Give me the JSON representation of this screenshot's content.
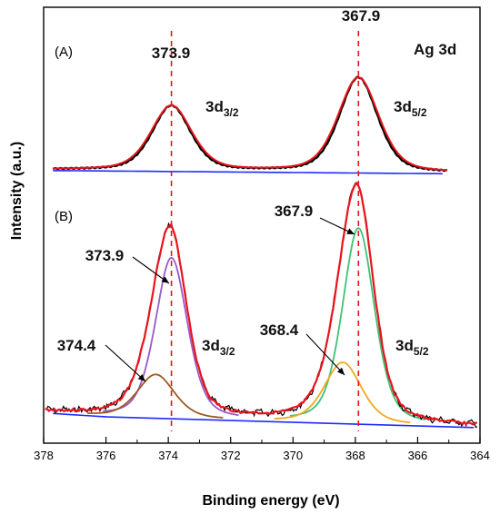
{
  "chart_data": {
    "type": "line",
    "title": "Ag 3d",
    "xlabel": "Binding energy (eV)",
    "ylabel": "Intensity (a.u.)",
    "xlim": [
      378,
      364
    ],
    "x_reversed": true,
    "xticks": [
      "378",
      "376",
      "374",
      "372",
      "370",
      "368",
      "366",
      "364"
    ],
    "grid": false,
    "panels": [
      {
        "label": "(A)",
        "peaks": [
          {
            "position": 373.9,
            "label": "373.9",
            "orbital": "3d",
            "orbital_sub": "3/2"
          },
          {
            "position": 367.9,
            "label": "367.9",
            "orbital": "3d",
            "orbital_sub": "5/2"
          }
        ],
        "series": [
          {
            "role": "experimental",
            "color": "#000000",
            "peaks": [
              {
                "center": 373.9,
                "height": 1.0,
                "width": 0.62
              },
              {
                "center": 367.9,
                "height": 1.46,
                "width": 0.62
              }
            ]
          },
          {
            "role": "fit-envelope",
            "color": "#e8141c",
            "peaks": [
              {
                "center": 373.9,
                "height": 1.0,
                "width": 0.66
              },
              {
                "center": 367.9,
                "height": 1.46,
                "width": 0.66
              }
            ]
          },
          {
            "role": "background",
            "color": "#1f2bff"
          }
        ]
      },
      {
        "label": "(B)",
        "peaks": [
          {
            "position": 373.9,
            "label": "373.9",
            "orbital": "3d",
            "orbital_sub": "3/2"
          },
          {
            "position": 374.4,
            "label": "374.4"
          },
          {
            "position": 367.9,
            "label": "367.9",
            "orbital": "3d",
            "orbital_sub": "5/2"
          },
          {
            "position": 368.4,
            "label": "368.4"
          }
        ],
        "series": [
          {
            "role": "component",
            "label": "373.9",
            "color": "#9a59c9",
            "center": 373.9,
            "height": 0.82,
            "width": 0.52
          },
          {
            "role": "component",
            "label": "374.4",
            "color": "#9c5a22",
            "center": 374.4,
            "height": 0.22,
            "width": 0.6
          },
          {
            "role": "component",
            "label": "367.9",
            "color": "#3ec276",
            "center": 367.9,
            "height": 1.0,
            "width": 0.52
          },
          {
            "role": "component",
            "label": "368.4",
            "color": "#f0a820",
            "center": 368.4,
            "height": 0.31,
            "width": 0.6
          },
          {
            "role": "fit-envelope",
            "color": "#e8141c"
          },
          {
            "role": "experimental",
            "color": "#000000"
          },
          {
            "role": "background",
            "color": "#1f2bff"
          }
        ]
      }
    ],
    "reference_lines": [
      {
        "x": 373.9,
        "color": "#e8141c",
        "style": "dashed"
      },
      {
        "x": 367.9,
        "color": "#e8141c",
        "style": "dashed"
      }
    ]
  }
}
